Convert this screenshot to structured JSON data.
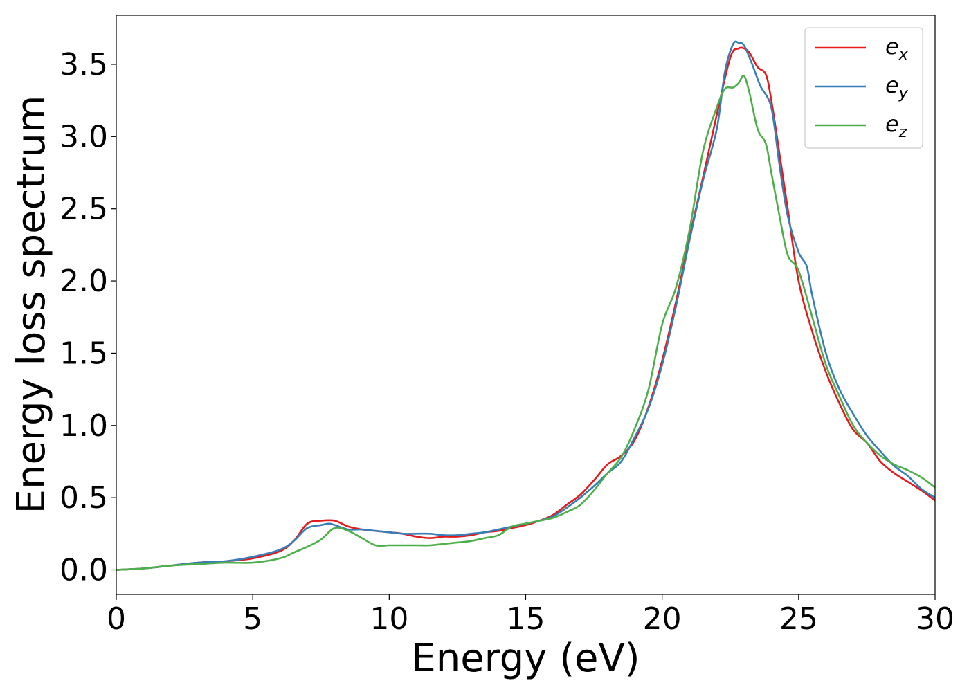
{
  "chart_data": {
    "type": "line",
    "title": "",
    "xlabel": "Energy (eV)",
    "ylabel": "Energy loss spectrum",
    "xlim": [
      0,
      30
    ],
    "ylim": [
      -0.17,
      3.84
    ],
    "xticks": [
      0,
      5,
      10,
      15,
      20,
      25,
      30
    ],
    "xtick_labels": [
      "0",
      "5",
      "10",
      "15",
      "20",
      "25",
      "30"
    ],
    "yticks": [
      0.0,
      0.5,
      1.0,
      1.5,
      2.0,
      2.5,
      3.0,
      3.5
    ],
    "ytick_labels": [
      "0.0",
      "0.5",
      "1.0",
      "1.5",
      "2.0",
      "2.5",
      "3.0",
      "3.5"
    ],
    "grid": false,
    "legend_position": "top-right",
    "series": [
      {
        "name": "e_x",
        "legend_base": "e",
        "legend_sub": "x",
        "color": "#e41a1c",
        "points": [
          [
            0,
            0.0
          ],
          [
            1,
            0.01
          ],
          [
            2,
            0.03
          ],
          [
            3,
            0.05
          ],
          [
            4,
            0.06
          ],
          [
            5,
            0.08
          ],
          [
            6,
            0.13
          ],
          [
            6.5,
            0.2
          ],
          [
            7,
            0.32
          ],
          [
            7.5,
            0.34
          ],
          [
            8,
            0.34
          ],
          [
            8.5,
            0.3
          ],
          [
            9,
            0.28
          ],
          [
            9.5,
            0.27
          ],
          [
            10,
            0.26
          ],
          [
            10.5,
            0.25
          ],
          [
            11,
            0.23
          ],
          [
            11.5,
            0.22
          ],
          [
            12,
            0.23
          ],
          [
            12.5,
            0.23
          ],
          [
            13,
            0.24
          ],
          [
            13.5,
            0.26
          ],
          [
            14,
            0.27
          ],
          [
            14.5,
            0.29
          ],
          [
            15,
            0.31
          ],
          [
            15.5,
            0.34
          ],
          [
            16,
            0.38
          ],
          [
            16.5,
            0.45
          ],
          [
            17,
            0.52
          ],
          [
            17.5,
            0.62
          ],
          [
            18,
            0.73
          ],
          [
            18.5,
            0.79
          ],
          [
            19,
            0.9
          ],
          [
            19.5,
            1.13
          ],
          [
            20,
            1.45
          ],
          [
            20.5,
            1.85
          ],
          [
            21,
            2.3
          ],
          [
            21.5,
            2.72
          ],
          [
            22,
            3.15
          ],
          [
            22.5,
            3.55
          ],
          [
            22.8,
            3.61
          ],
          [
            23,
            3.61
          ],
          [
            23.2,
            3.58
          ],
          [
            23.5,
            3.48
          ],
          [
            23.8,
            3.43
          ],
          [
            24,
            3.25
          ],
          [
            24.3,
            2.88
          ],
          [
            24.6,
            2.5
          ],
          [
            25,
            2.0
          ],
          [
            25.5,
            1.65
          ],
          [
            26,
            1.37
          ],
          [
            26.5,
            1.15
          ],
          [
            27,
            0.97
          ],
          [
            27.5,
            0.88
          ],
          [
            28,
            0.75
          ],
          [
            28.5,
            0.67
          ],
          [
            29,
            0.61
          ],
          [
            29.5,
            0.55
          ],
          [
            30,
            0.48
          ]
        ]
      },
      {
        "name": "e_y",
        "legend_base": "e",
        "legend_sub": "y",
        "color": "#377eb8",
        "points": [
          [
            0,
            0.0
          ],
          [
            1,
            0.01
          ],
          [
            2,
            0.03
          ],
          [
            3,
            0.05
          ],
          [
            4,
            0.06
          ],
          [
            5,
            0.09
          ],
          [
            6,
            0.14
          ],
          [
            6.5,
            0.2
          ],
          [
            7,
            0.29
          ],
          [
            7.5,
            0.31
          ],
          [
            7.8,
            0.32
          ],
          [
            8,
            0.31
          ],
          [
            8.5,
            0.28
          ],
          [
            9,
            0.28
          ],
          [
            9.5,
            0.27
          ],
          [
            10,
            0.26
          ],
          [
            10.5,
            0.25
          ],
          [
            11,
            0.25
          ],
          [
            11.5,
            0.25
          ],
          [
            12,
            0.24
          ],
          [
            12.5,
            0.24
          ],
          [
            13,
            0.25
          ],
          [
            13.5,
            0.26
          ],
          [
            14,
            0.28
          ],
          [
            14.5,
            0.3
          ],
          [
            15,
            0.32
          ],
          [
            15.5,
            0.34
          ],
          [
            16,
            0.37
          ],
          [
            16.5,
            0.43
          ],
          [
            17,
            0.5
          ],
          [
            17.5,
            0.58
          ],
          [
            18,
            0.67
          ],
          [
            18.5,
            0.75
          ],
          [
            19,
            0.92
          ],
          [
            19.5,
            1.12
          ],
          [
            20,
            1.42
          ],
          [
            20.5,
            1.82
          ],
          [
            21,
            2.28
          ],
          [
            21.5,
            2.7
          ],
          [
            22,
            3.05
          ],
          [
            22.3,
            3.45
          ],
          [
            22.6,
            3.64
          ],
          [
            22.8,
            3.65
          ],
          [
            23,
            3.63
          ],
          [
            23.3,
            3.5
          ],
          [
            23.6,
            3.35
          ],
          [
            24,
            3.2
          ],
          [
            24.3,
            2.8
          ],
          [
            24.6,
            2.45
          ],
          [
            25,
            2.2
          ],
          [
            25.3,
            2.1
          ],
          [
            25.5,
            1.9
          ],
          [
            26,
            1.5
          ],
          [
            26.5,
            1.25
          ],
          [
            27,
            1.08
          ],
          [
            27.5,
            0.93
          ],
          [
            28,
            0.82
          ],
          [
            28.5,
            0.72
          ],
          [
            29,
            0.65
          ],
          [
            29.5,
            0.56
          ],
          [
            30,
            0.5
          ]
        ]
      },
      {
        "name": "e_z",
        "legend_base": "e",
        "legend_sub": "z",
        "color": "#4daf4a",
        "points": [
          [
            0,
            0.0
          ],
          [
            1,
            0.01
          ],
          [
            2,
            0.03
          ],
          [
            3,
            0.04
          ],
          [
            4,
            0.05
          ],
          [
            5,
            0.05
          ],
          [
            6,
            0.08
          ],
          [
            6.5,
            0.12
          ],
          [
            7,
            0.16
          ],
          [
            7.5,
            0.21
          ],
          [
            8,
            0.29
          ],
          [
            8.5,
            0.27
          ],
          [
            9,
            0.22
          ],
          [
            9.5,
            0.17
          ],
          [
            10,
            0.17
          ],
          [
            10.5,
            0.17
          ],
          [
            11,
            0.17
          ],
          [
            11.5,
            0.17
          ],
          [
            12,
            0.18
          ],
          [
            12.5,
            0.19
          ],
          [
            13,
            0.2
          ],
          [
            13.5,
            0.22
          ],
          [
            14,
            0.24
          ],
          [
            14.5,
            0.3
          ],
          [
            15,
            0.32
          ],
          [
            15.5,
            0.34
          ],
          [
            16,
            0.36
          ],
          [
            16.5,
            0.4
          ],
          [
            17,
            0.45
          ],
          [
            17.5,
            0.55
          ],
          [
            18,
            0.67
          ],
          [
            18.5,
            0.78
          ],
          [
            19,
            0.98
          ],
          [
            19.5,
            1.25
          ],
          [
            20,
            1.7
          ],
          [
            20.5,
            1.95
          ],
          [
            21,
            2.35
          ],
          [
            21.5,
            2.9
          ],
          [
            22,
            3.2
          ],
          [
            22.3,
            3.33
          ],
          [
            22.6,
            3.34
          ],
          [
            22.8,
            3.37
          ],
          [
            23,
            3.42
          ],
          [
            23.2,
            3.3
          ],
          [
            23.5,
            3.05
          ],
          [
            23.8,
            2.95
          ],
          [
            24,
            2.75
          ],
          [
            24.3,
            2.45
          ],
          [
            24.6,
            2.18
          ],
          [
            25,
            2.07
          ],
          [
            25.5,
            1.75
          ],
          [
            26,
            1.42
          ],
          [
            26.5,
            1.2
          ],
          [
            27,
            1.0
          ],
          [
            27.5,
            0.88
          ],
          [
            28,
            0.79
          ],
          [
            28.5,
            0.73
          ],
          [
            29,
            0.69
          ],
          [
            29.5,
            0.64
          ],
          [
            30,
            0.57
          ]
        ]
      }
    ]
  }
}
